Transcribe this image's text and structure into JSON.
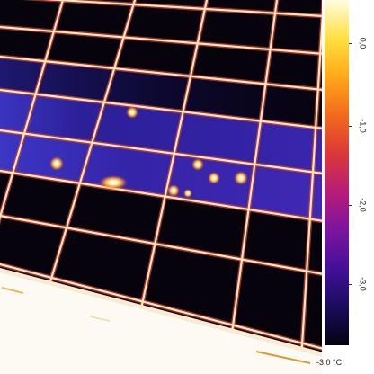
{
  "colorbar": {
    "ticks": [
      {
        "label": "0,0"
      },
      {
        "label": "-1,0"
      },
      {
        "label": "-2,0"
      },
      {
        "label": "-3,0"
      }
    ],
    "min_label": "-3,0 °C",
    "colors": [
      "#fffde0",
      "#ffe040",
      "#ffa818",
      "#f26a1c",
      "#dc3838",
      "#b81c78",
      "#7c149e",
      "#44109a",
      "#1a0c5c",
      "#040210"
    ]
  },
  "colors": {
    "background": "#ffffff",
    "panel": "#07030d",
    "frame_core": "#ffe6c4",
    "frame_halo": "#c8402c",
    "ground": "#fcfaf2",
    "label_text": "#222222"
  }
}
